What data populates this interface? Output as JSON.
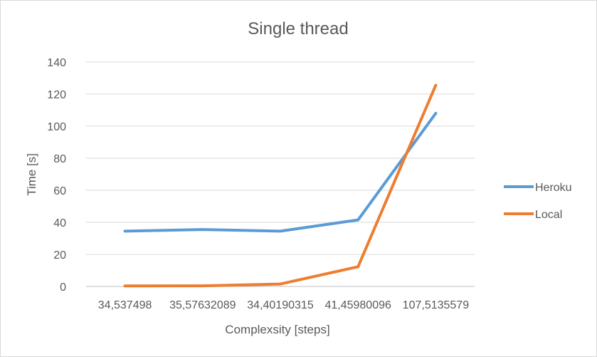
{
  "chart_data": {
    "type": "line",
    "title": "Single thread",
    "xlabel": "Complexsity [steps]",
    "ylabel": "Time [s]",
    "categories": [
      "34,537498",
      "35,57632089",
      "34,40190315",
      "41,45980096",
      "107,5135579"
    ],
    "ylim": [
      0,
      140
    ],
    "yticks": [
      0,
      20,
      40,
      60,
      80,
      100,
      120,
      140
    ],
    "grid": true,
    "legend_position": "right",
    "series": [
      {
        "name": "Heroku",
        "color": "#5b9bd5",
        "values": [
          34.5,
          35.5,
          34.5,
          41.5,
          108
        ]
      },
      {
        "name": "Local",
        "color": "#ed7d31",
        "values": [
          0.3,
          0.4,
          1.5,
          12.3,
          125.5
        ]
      }
    ]
  }
}
